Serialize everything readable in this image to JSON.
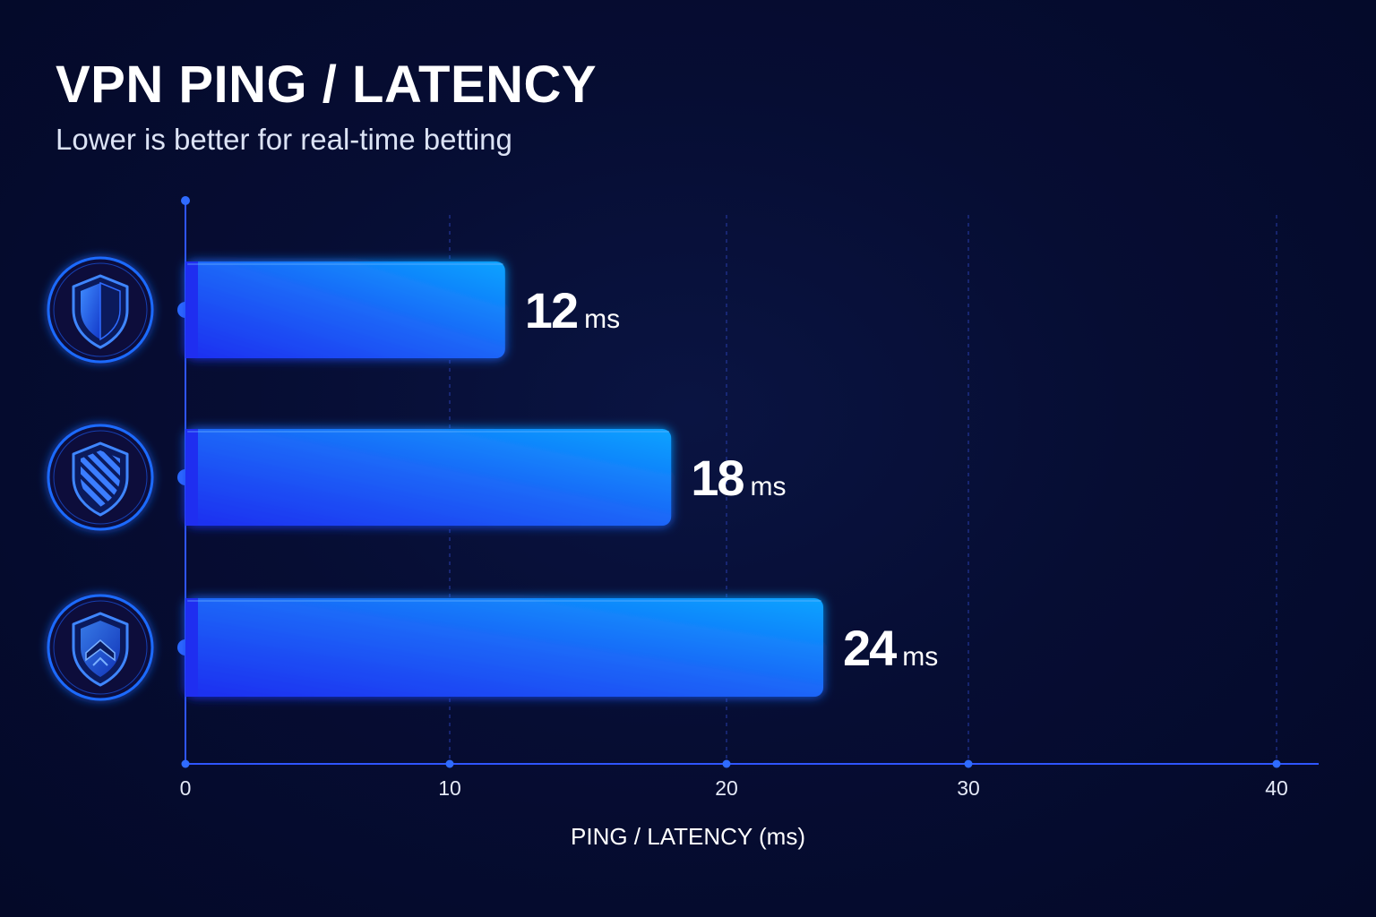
{
  "header": {
    "title": "VPN PING / LATENCY",
    "subtitle": "Lower is better for real-time betting"
  },
  "colors": {
    "background": "#050b2c",
    "bar_start": "#1f33f0",
    "bar_end": "#0aa0ff",
    "axis": "#2f55ff",
    "icon_ring": "#1e6bff"
  },
  "chart_data": {
    "type": "bar",
    "orientation": "horizontal",
    "title": "VPN PING / LATENCY",
    "subtitle": "Lower is better for real-time betting",
    "xlabel": "PING / LATENCY (ms)",
    "ylabel": "",
    "unit": "ms",
    "xlim": [
      0,
      40
    ],
    "x_ticks": [
      0,
      10,
      20,
      30,
      40
    ],
    "grid": "vertical dashed",
    "categories": [
      "shield-half-icon",
      "shield-striped-icon",
      "shield-chevron-icon"
    ],
    "values": [
      12,
      18,
      24
    ],
    "value_labels": [
      "12",
      "18",
      "24"
    ]
  }
}
